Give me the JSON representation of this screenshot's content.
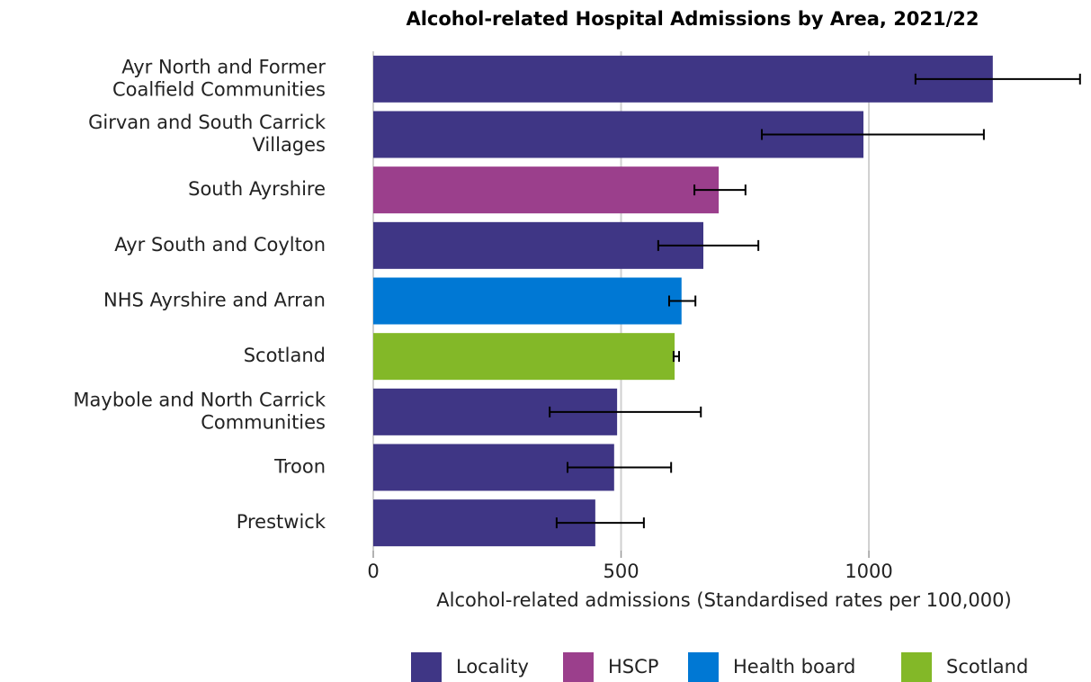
{
  "chart_data": {
    "type": "bar",
    "orientation": "horizontal",
    "title": "Alcohol-related Hospital Admissions by Area, 2021/22",
    "x_label": "Alcohol-related admissions (Standardised rates per 100,000)",
    "categories": [
      "Ayr North and Former\nCoalfield Communities",
      "Girvan and South Carrick\nVillages",
      "South Ayrshire",
      "Ayr South and Coylton",
      "NHS Ayrshire and Arran",
      "Scotland",
      "Maybole and North Carrick\nCommunities",
      "Troon",
      "Prestwick"
    ],
    "values": [
      1250,
      989,
      697,
      666,
      622,
      608,
      492,
      486,
      448
    ],
    "ci_lower": [
      1094,
      784,
      648,
      575,
      597,
      606,
      356,
      392,
      370
    ],
    "ci_upper": [
      1426,
      1232,
      751,
      777,
      650,
      617,
      661,
      601,
      546
    ],
    "groups": [
      {
        "name": "Locality",
        "color": "#3f3685"
      },
      {
        "name": "HSCP",
        "color": "#9b3f8c"
      },
      {
        "name": "Health board",
        "color": "#0078d4"
      },
      {
        "name": "Scotland",
        "color": "#83b828"
      }
    ],
    "category_groups": [
      0,
      0,
      1,
      0,
      2,
      3,
      0,
      0,
      0
    ],
    "highlight_index": 7,
    "highlight_color": "#ff0000",
    "xlim": [
      0,
      1430
    ],
    "xticks": [
      0,
      500,
      1000
    ],
    "grid": true,
    "legend": "bottom"
  }
}
